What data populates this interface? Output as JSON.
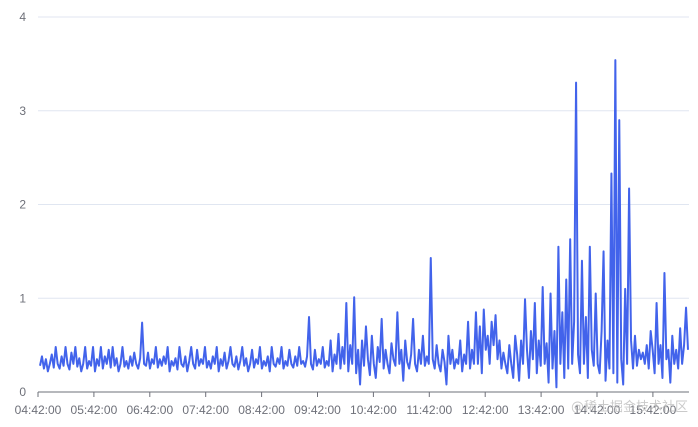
{
  "chart_data": {
    "type": "line",
    "title": "",
    "xlabel": "",
    "ylabel": "",
    "ylim": [
      0,
      4
    ],
    "yticks": [
      "0",
      "1",
      "2",
      "3",
      "4"
    ],
    "xticks": [
      "04:42:00",
      "05:42:00",
      "06:42:00",
      "07:42:00",
      "08:42:00",
      "09:42:00",
      "10:42:00",
      "11:42:00",
      "12:42:00",
      "13:42:00",
      "14:42:00",
      "15:42:00"
    ],
    "x_start": "04:42:00",
    "x_end": "16:12:00",
    "grid": true,
    "legend": "none",
    "series": [
      {
        "values": [
          0.28,
          0.38,
          0.25,
          0.35,
          0.22,
          0.3,
          0.4,
          0.26,
          0.48,
          0.3,
          0.25,
          0.38,
          0.28,
          0.48,
          0.3,
          0.24,
          0.42,
          0.3,
          0.48,
          0.27,
          0.36,
          0.22,
          0.3,
          0.48,
          0.25,
          0.33,
          0.28,
          0.48,
          0.22,
          0.35,
          0.28,
          0.48,
          0.25,
          0.38,
          0.3,
          0.45,
          0.26,
          0.48,
          0.28,
          0.36,
          0.22,
          0.3,
          0.48,
          0.27,
          0.33,
          0.25,
          0.38,
          0.28,
          0.42,
          0.3,
          0.25,
          0.36,
          0.74,
          0.3,
          0.28,
          0.42,
          0.25,
          0.35,
          0.3,
          0.48,
          0.26,
          0.35,
          0.28,
          0.38,
          0.3,
          0.48,
          0.22,
          0.33,
          0.28,
          0.36,
          0.24,
          0.48,
          0.3,
          0.27,
          0.38,
          0.22,
          0.33,
          0.48,
          0.3,
          0.25,
          0.45,
          0.28,
          0.35,
          0.3,
          0.48,
          0.26,
          0.33,
          0.25,
          0.38,
          0.3,
          0.48,
          0.22,
          0.35,
          0.28,
          0.42,
          0.25,
          0.33,
          0.48,
          0.3,
          0.27,
          0.38,
          0.24,
          0.33,
          0.48,
          0.28,
          0.36,
          0.22,
          0.3,
          0.45,
          0.26,
          0.35,
          0.3,
          0.48,
          0.25,
          0.33,
          0.28,
          0.38,
          0.22,
          0.48,
          0.3,
          0.27,
          0.36,
          0.3,
          0.48,
          0.25,
          0.33,
          0.28,
          0.45,
          0.3,
          0.26,
          0.38,
          0.28,
          0.48,
          0.3,
          0.33,
          0.27,
          0.38,
          0.8,
          0.3,
          0.24,
          0.45,
          0.28,
          0.35,
          0.3,
          0.48,
          0.26,
          0.33,
          0.28,
          0.55,
          0.22,
          0.4,
          0.3,
          0.62,
          0.25,
          0.48,
          0.3,
          0.95,
          0.22,
          0.5,
          0.3,
          1.01,
          0.2,
          0.45,
          0.08,
          0.55,
          0.28,
          0.7,
          0.35,
          0.18,
          0.6,
          0.3,
          0.15,
          0.48,
          0.32,
          0.78,
          0.25,
          0.45,
          0.3,
          0.2,
          0.52,
          0.35,
          0.28,
          0.85,
          0.3,
          0.45,
          0.12,
          0.55,
          0.32,
          0.25,
          0.4,
          0.78,
          0.3,
          0.22,
          0.45,
          0.3,
          0.6,
          0.28,
          0.38,
          0.3,
          1.43,
          0.35,
          0.25,
          0.5,
          0.3,
          0.22,
          0.45,
          0.32,
          0.08,
          0.6,
          0.3,
          0.45,
          0.25,
          0.35,
          0.3,
          0.55,
          0.22,
          0.4,
          0.3,
          0.75,
          0.25,
          0.45,
          0.3,
          0.85,
          0.3,
          0.7,
          0.2,
          0.88,
          0.45,
          0.6,
          0.3,
          0.75,
          0.5,
          0.82,
          0.35,
          0.55,
          0.25,
          0.42,
          0.3,
          0.2,
          0.5,
          0.3,
          0.15,
          0.6,
          0.4,
          0.12,
          0.55,
          0.3,
          0.99,
          0.45,
          0.15,
          0.65,
          0.35,
          0.95,
          0.2,
          0.55,
          0.28,
          1.12,
          0.3,
          0.52,
          0.1,
          1.05,
          0.25,
          0.65,
          0.05,
          1.55,
          0.3,
          0.85,
          0.15,
          1.2,
          0.25,
          1.63,
          0.3,
          0.75,
          3.3,
          0.4,
          0.2,
          1.4,
          0.3,
          0.8,
          0.15,
          1.55,
          0.45,
          0.28,
          1.05,
          0.3,
          0.2,
          0.65,
          1.5,
          0.12,
          0.55,
          0.25,
          2.33,
          0.2,
          3.54,
          0.1,
          2.9,
          0.35,
          0.08,
          1.1,
          0.3,
          2.17,
          0.55,
          0.25,
          0.6,
          0.28,
          0.45,
          0.35,
          0.42,
          0.3,
          0.5,
          0.25,
          0.65,
          0.45,
          0.2,
          0.95,
          0.3,
          0.5,
          0.15,
          1.27,
          0.35,
          0.45,
          0.1,
          0.6,
          0.3,
          0.45,
          0.25,
          0.68,
          0.3,
          0.5,
          0.9,
          0.45
        ]
      }
    ]
  },
  "watermark": {
    "text": "@稀土掘金技术社区"
  }
}
